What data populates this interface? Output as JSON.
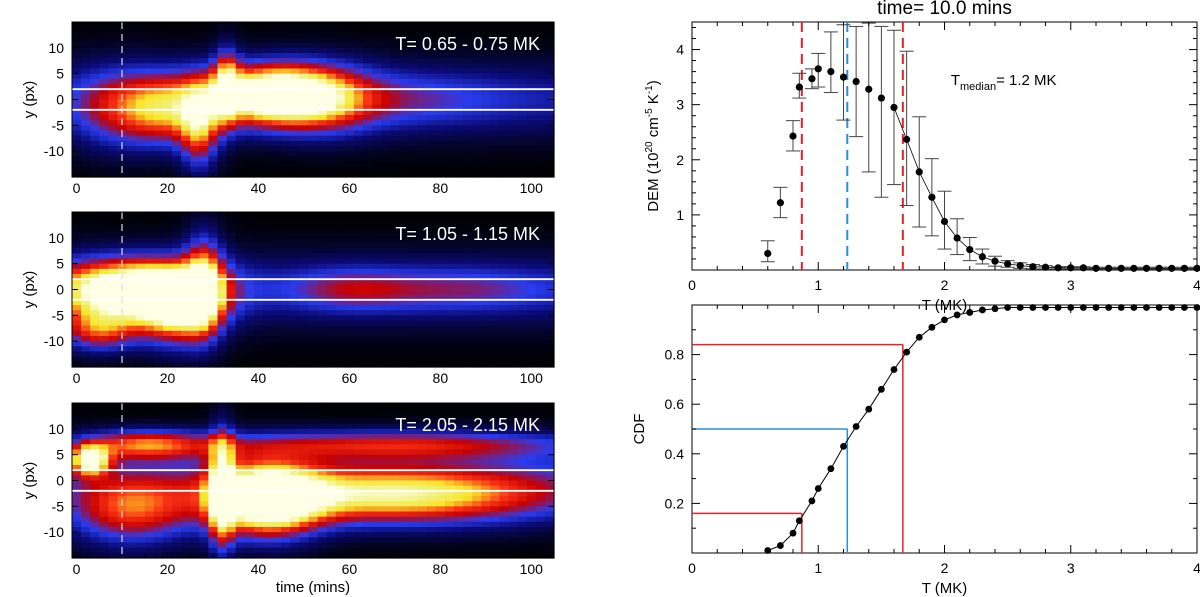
{
  "chart_data": [
    {
      "type": "heatmap",
      "panel": "top-left",
      "title_overlay": "T= 0.65 - 0.75 MK",
      "xlabel": "",
      "ylabel": "y (px)",
      "xlim": [
        -1,
        105
      ],
      "ylim": [
        -15,
        15
      ],
      "xticks": [
        "0",
        "20",
        "40",
        "60",
        "80",
        "100"
      ],
      "yticks": [
        "10",
        "5",
        "0",
        "-5",
        "-10"
      ],
      "dashed_vline_time": 10,
      "white_hlines_y": [
        2,
        -2
      ],
      "colormap": "black-blue-red-yellow-white",
      "blobs": [
        {
          "t": 43,
          "y": 1,
          "sx": 9,
          "sy": 4,
          "i": 1.0
        },
        {
          "t": 20,
          "y": -2,
          "sx": 7,
          "sy": 5,
          "i": 0.55
        },
        {
          "t": 33,
          "y": 3,
          "sx": 2,
          "sy": 5,
          "i": 0.55
        },
        {
          "t": 27,
          "y": -6,
          "sx": 3,
          "sy": 6,
          "i": 0.5
        },
        {
          "t": 55,
          "y": 0,
          "sx": 8,
          "sy": 5,
          "i": 0.35
        },
        {
          "t": 70,
          "y": 0,
          "sx": 18,
          "sy": 4,
          "i": 0.2
        },
        {
          "t": 8,
          "y": -2,
          "sx": 7,
          "sy": 6,
          "i": 0.3
        }
      ]
    },
    {
      "type": "heatmap",
      "panel": "middle-left",
      "title_overlay": "T= 1.05 - 1.15 MK",
      "xlabel": "",
      "ylabel": "y (px)",
      "xlim": [
        -1,
        105
      ],
      "ylim": [
        -15,
        15
      ],
      "xticks": [
        "0",
        "20",
        "40",
        "60",
        "80",
        "100"
      ],
      "yticks": [
        "10",
        "5",
        "0",
        "-5",
        "-10"
      ],
      "dashed_vline_time": 10,
      "white_hlines_y": [
        2,
        -2
      ],
      "colormap": "black-blue-red-yellow-white",
      "blobs": [
        {
          "t": 12,
          "y": 0,
          "sx": 12,
          "sy": 4,
          "i": 1.05
        },
        {
          "t": 22,
          "y": -4,
          "sx": 6,
          "sy": 5,
          "i": 0.75
        },
        {
          "t": 28,
          "y": 1,
          "sx": 3,
          "sy": 7,
          "i": 0.6
        },
        {
          "t": 5,
          "y": -8,
          "sx": 6,
          "sy": 3,
          "i": 0.55
        },
        {
          "t": 60,
          "y": 0,
          "sx": 10,
          "sy": 3,
          "i": 0.25
        },
        {
          "t": 85,
          "y": 0,
          "sx": 15,
          "sy": 3,
          "i": 0.22
        }
      ]
    },
    {
      "type": "heatmap",
      "panel": "bottom-left",
      "title_overlay": "T= 2.05 - 2.15 MK",
      "xlabel": "time (mins)",
      "ylabel": "y (px)",
      "xlim": [
        -1,
        105
      ],
      "ylim": [
        -15,
        15
      ],
      "xticks": [
        "0",
        "20",
        "40",
        "60",
        "80",
        "100"
      ],
      "yticks": [
        "10",
        "5",
        "0",
        "-5",
        "-10"
      ],
      "dashed_vline_time": 10,
      "white_hlines_y": [
        2,
        -2
      ],
      "colormap": "black-blue-red-yellow-white",
      "blobs": [
        {
          "t": 42,
          "y": -4,
          "sx": 8,
          "sy": 5,
          "i": 1.0
        },
        {
          "t": 70,
          "y": -3,
          "sx": 25,
          "sy": 4,
          "i": 0.75
        },
        {
          "t": 32,
          "y": -2,
          "sx": 2,
          "sy": 8,
          "i": 0.7
        },
        {
          "t": 15,
          "y": 7,
          "sx": 10,
          "sy": 2,
          "i": 0.55
        },
        {
          "t": 12,
          "y": -6,
          "sx": 10,
          "sy": 5,
          "i": 0.55
        },
        {
          "t": 70,
          "y": 7,
          "sx": 30,
          "sy": 2,
          "i": 0.5
        },
        {
          "t": 3,
          "y": 4,
          "sx": 3,
          "sy": 2,
          "i": 0.9
        }
      ]
    },
    {
      "type": "scatter",
      "panel": "top-right",
      "title": "time= 10.0 mins",
      "xlabel": "T (MK)",
      "ylabel": "DEM (10^20 cm^-5 K^-1)",
      "ylabel_parts": {
        "base": "DEM (10",
        "e1": "20",
        "mid": " cm",
        "e2": "-5",
        "mid2": " K",
        "e3": "-1",
        "end": ")"
      },
      "xlim": [
        0,
        4
      ],
      "ylim": [
        0,
        4.5
      ],
      "xticks": [
        "0",
        "1",
        "2",
        "3",
        "4"
      ],
      "yticks": [
        "1",
        "2",
        "3",
        "4"
      ],
      "annotation": {
        "base": "T",
        "sub": "median",
        "rest": "= 1.2 MK"
      },
      "percentile_lines": {
        "p16": 0.87,
        "median": 1.23,
        "p84": 1.67
      },
      "T": [
        0.6,
        0.7,
        0.8,
        0.85,
        0.95,
        1.0,
        1.1,
        1.2,
        1.3,
        1.4,
        1.5,
        1.6,
        1.7,
        1.8,
        1.9,
        2.0,
        2.1,
        2.2,
        2.3,
        2.4,
        2.5,
        2.6,
        2.7,
        2.8,
        2.9,
        3.0,
        3.1,
        3.2,
        3.3,
        3.4,
        3.5,
        3.6,
        3.7,
        3.8,
        3.9,
        4.0
      ],
      "dem": [
        0.3,
        1.22,
        2.43,
        3.32,
        3.47,
        3.65,
        3.6,
        3.5,
        3.42,
        3.28,
        3.12,
        2.95,
        2.37,
        1.78,
        1.32,
        0.88,
        0.58,
        0.37,
        0.24,
        0.16,
        0.11,
        0.08,
        0.06,
        0.05,
        0.04,
        0.04,
        0.04,
        0.03,
        0.03,
        0.03,
        0.03,
        0.03,
        0.03,
        0.03,
        0.03,
        0.03
      ],
      "err_lo": [
        0.15,
        0.27,
        0.27,
        0.2,
        0.18,
        0.33,
        0.38,
        0.78,
        1.0,
        1.5,
        1.8,
        1.4,
        1.2,
        1.0,
        0.7,
        0.5,
        0.3,
        0.2,
        0.13,
        0.09,
        0.06,
        0.05,
        0.04,
        0.03,
        0.02,
        0.02,
        0.02,
        0.02,
        0.02,
        0.02,
        0.02,
        0.02,
        0.02,
        0.02,
        0.02,
        0.02
      ],
      "err_hi": [
        0.23,
        0.28,
        0.28,
        0.25,
        0.18,
        0.28,
        0.72,
        0.95,
        1.0,
        1.2,
        1.3,
        1.4,
        1.6,
        1.0,
        0.7,
        0.55,
        0.35,
        0.22,
        0.14,
        0.09,
        0.06,
        0.05,
        0.04,
        0.03,
        0.02,
        0.02,
        0.02,
        0.02,
        0.02,
        0.02,
        0.02,
        0.02,
        0.02,
        0.02,
        0.02,
        0.02
      ]
    },
    {
      "type": "line",
      "panel": "bottom-right",
      "xlabel": "T (MK)",
      "ylabel": "CDF",
      "xlim": [
        0,
        4
      ],
      "ylim": [
        0,
        1.0
      ],
      "xticks": [
        "0",
        "1",
        "2",
        "3",
        "4"
      ],
      "yticks": [
        "0.2",
        "0.4",
        "0.6",
        "0.8"
      ],
      "T": [
        0.6,
        0.7,
        0.8,
        0.85,
        0.95,
        1.0,
        1.1,
        1.2,
        1.3,
        1.4,
        1.5,
        1.6,
        1.7,
        1.8,
        1.9,
        2.0,
        2.1,
        2.2,
        2.3,
        2.4,
        2.5,
        2.6,
        2.7,
        2.8,
        2.9,
        3.0,
        3.1,
        3.2,
        3.3,
        3.4,
        3.5,
        3.6,
        3.7,
        3.8,
        3.9,
        4.0
      ],
      "cdf": [
        0.01,
        0.03,
        0.08,
        0.13,
        0.21,
        0.26,
        0.34,
        0.43,
        0.51,
        0.58,
        0.66,
        0.74,
        0.81,
        0.87,
        0.91,
        0.94,
        0.96,
        0.97,
        0.98,
        0.985,
        0.99,
        0.99,
        0.99,
        0.99,
        0.99,
        0.99,
        0.99,
        0.99,
        0.99,
        0.99,
        0.99,
        0.99,
        0.99,
        0.99,
        0.99,
        0.99
      ],
      "guide_lines": [
        {
          "color": "#e8202a",
          "T": 0.87,
          "cdf": 0.16
        },
        {
          "color": "#2b8fd6",
          "T": 1.23,
          "cdf": 0.5
        },
        {
          "color": "#e8202a",
          "T": 1.67,
          "cdf": 0.84
        }
      ]
    }
  ],
  "colors": {
    "red": "#e8202a",
    "blue": "#2b8fd6"
  }
}
